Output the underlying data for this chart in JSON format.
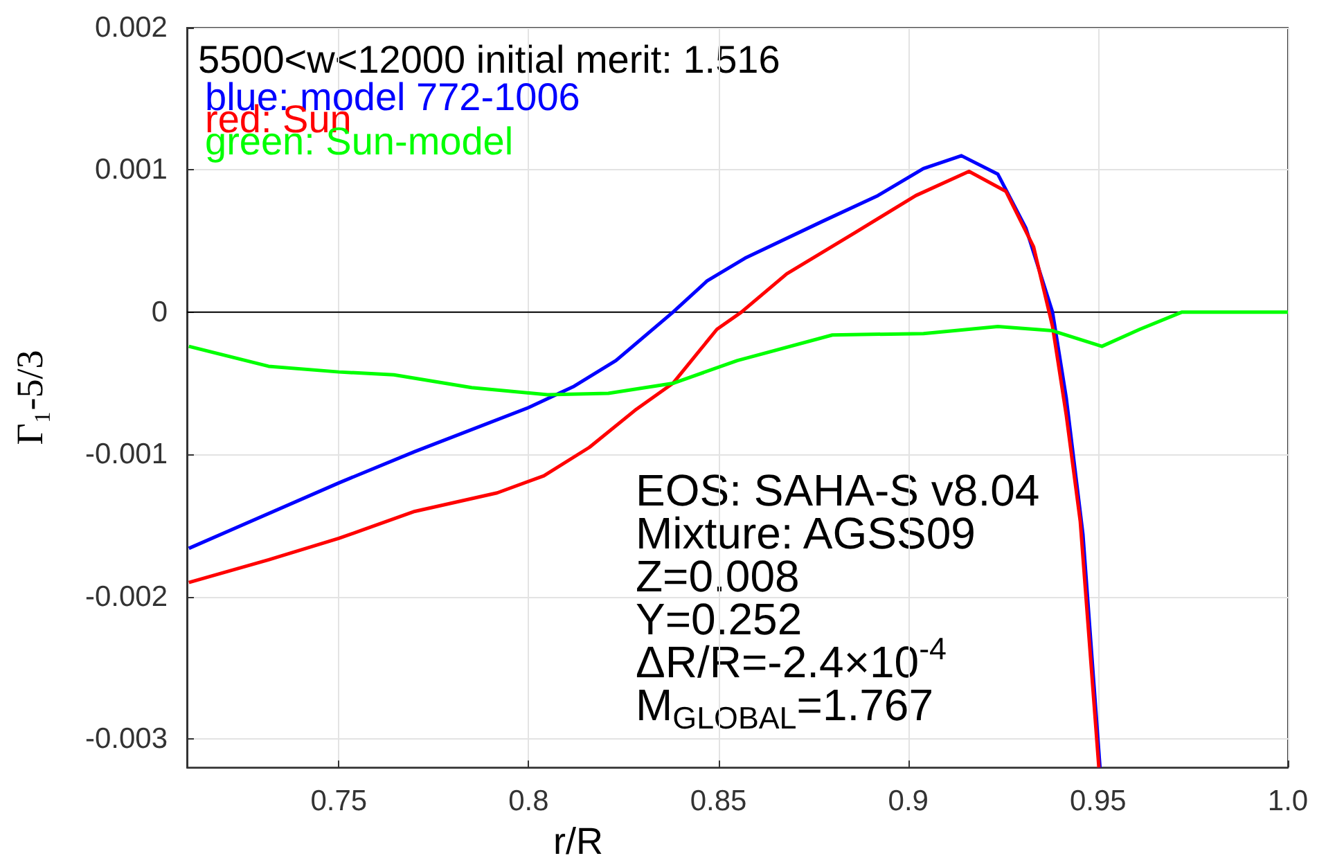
{
  "chart_data": {
    "type": "line",
    "xlabel": "r/R",
    "ylabel": "Γ₁-5/3",
    "xlim": [
      0.71,
      1.0
    ],
    "xticks": [
      0.75,
      0.8,
      0.85,
      0.9,
      0.95,
      {
        "value": 1.0,
        "label": "1.0"
      }
    ],
    "ylim": [
      -0.0032,
      0.002
    ],
    "yticks": [
      -0.003,
      -0.002,
      -0.001,
      0,
      0.001,
      0.002
    ],
    "grid": true,
    "legend": "top left",
    "marker": "none",
    "line_style": "solid",
    "ref_lines": [
      {
        "axis": "y",
        "value": 0,
        "color": "#000000"
      }
    ],
    "annotations": [
      "5500<w<12000 initial merit: 1.516",
      "EOS: SAHA-S v8.04",
      "Mixture: AGSS09",
      "Z=0.008",
      "Y=0.252",
      "ΔR/R=-2.4×10$^{-4}$",
      "M$_{GLOBAL}$=1.767"
    ],
    "series": [
      {
        "name": "blue: model 772-1006",
        "color": "#0000ff",
        "x": [
          0.7105,
          0.75,
          0.77,
          0.8,
          0.812,
          0.823,
          0.838,
          0.847,
          0.857,
          0.8775,
          0.892,
          0.904,
          0.914,
          0.9236,
          0.931,
          0.938,
          0.9416,
          0.946,
          0.9505
        ],
        "values": [
          -0.00166,
          -0.0012,
          -0.00098,
          -0.00067,
          -0.00052,
          -0.00034,
          0,
          0.00022,
          0.00038,
          0.00064,
          0.00082,
          0.00101,
          0.0011,
          0.00097,
          0.00059,
          0,
          -0.0006,
          -0.00156,
          -0.0032
        ]
      },
      {
        "name": "red: Sun",
        "color": "#ff0000",
        "x": [
          0.7105,
          0.7315,
          0.75,
          0.77,
          0.7917,
          0.804,
          0.816,
          0.828,
          0.838,
          0.8496,
          0.856,
          0.868,
          0.886,
          0.902,
          0.916,
          0.9257,
          0.933,
          0.938,
          0.9416,
          0.9453,
          0.9502
        ],
        "values": [
          -0.0019,
          -0.00174,
          -0.00159,
          -0.0014,
          -0.00127,
          -0.00115,
          -0.00095,
          -0.00069,
          -0.0005,
          -0.00012,
          0,
          0.00027,
          0.00056,
          0.00082,
          0.00099,
          0.00085,
          0.00046,
          -0.0001,
          -0.00072,
          -0.00147,
          -0.0032
        ]
      },
      {
        "name": "green: Sun-model",
        "color": "#00ff00",
        "x": [
          0.7105,
          0.7315,
          0.75,
          0.7645,
          0.785,
          0.805,
          0.821,
          0.838,
          0.855,
          0.88,
          0.904,
          0.9236,
          0.938,
          0.951,
          0.961,
          0.972,
          0.985,
          1.0
        ],
        "values": [
          -0.00024,
          -0.00038,
          -0.00042,
          -0.00044,
          -0.00053,
          -0.00058,
          -0.00057,
          -0.0005,
          -0.00034,
          -0.00016,
          -0.00015,
          -0.0001,
          -0.00013,
          -0.00024,
          -0.00012,
          0,
          0,
          0
        ]
      }
    ]
  }
}
